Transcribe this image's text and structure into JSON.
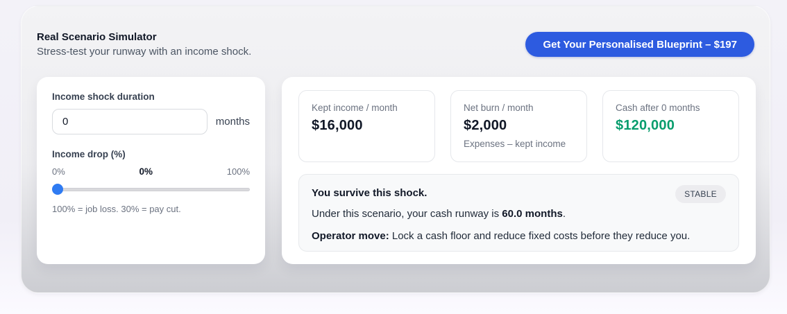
{
  "header": {
    "title": "Real Scenario Simulator",
    "subtitle": "Stress-test your runway with an income shock.",
    "cta_label": "Get Your Personalised Blueprint – $197"
  },
  "controls": {
    "duration_label": "Income shock duration",
    "duration_value": "0",
    "duration_unit": "months",
    "drop_label": "Income drop (%)",
    "drop_min_label": "0%",
    "drop_current_label": "0%",
    "drop_max_label": "100%",
    "drop_note": "100% = job loss. 30% = pay cut."
  },
  "stats": [
    {
      "label": "Kept income / month",
      "value": "$16,000"
    },
    {
      "label": "Net burn / month",
      "value": "$2,000",
      "note": "Expenses – kept income"
    },
    {
      "label": "Cash after 0 months",
      "value": "$120,000"
    }
  ],
  "status": {
    "headline": "You survive this shock.",
    "badge": "STABLE",
    "runway_prefix": "Under this scenario, your cash runway is ",
    "runway_bold": "60.0 months",
    "runway_suffix": ".",
    "move_bold": "Operator move:",
    "move_rest": " Lock a cash floor and reduce fixed costs before they reduce you."
  },
  "colors": {
    "accent_blue": "#2d5be0",
    "slider_blue": "#2f7bf2",
    "positive_green": "#089d6d"
  }
}
